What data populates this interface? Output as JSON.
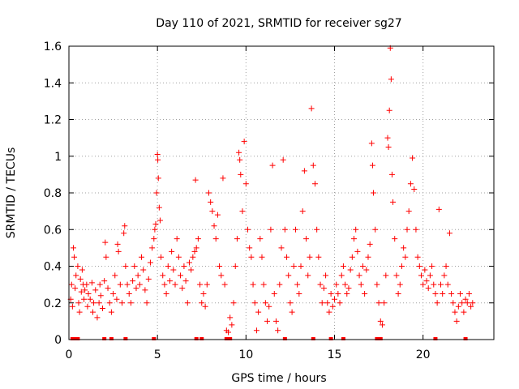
{
  "chart_data": {
    "type": "scatter",
    "title": "Day 110 of 2021, SRMTID for receiver sg27",
    "xlabel": "GPS time / hours",
    "ylabel": "SRMTID / TECUs",
    "xlim": [
      0,
      24
    ],
    "ylim": [
      0,
      1.6
    ],
    "xticks": [
      0,
      5,
      10,
      15,
      20
    ],
    "yticks": [
      0,
      0.2,
      0.4,
      0.6,
      0.8,
      1,
      1.2,
      1.4,
      1.6
    ],
    "ytick_labels": [
      "0",
      "0.2",
      "0.4",
      "0.6",
      "0.8",
      "1",
      "1.2",
      "1.4",
      "1.6"
    ],
    "grid": true,
    "legend": "none",
    "marker": "plus",
    "color": "#ff0000",
    "series": [
      {
        "name": "SRMTID",
        "points": [
          [
            0.1,
            0.22
          ],
          [
            0.15,
            0.3
          ],
          [
            0.2,
            0.18
          ],
          [
            0.25,
            0.5
          ],
          [
            0.3,
            0.45
          ],
          [
            0.35,
            0.28
          ],
          [
            0.4,
            0.35
          ],
          [
            0.5,
            0.4
          ],
          [
            0.55,
            0.2
          ],
          [
            0.6,
            0.15
          ],
          [
            0.65,
            0.33
          ],
          [
            0.7,
            0.26
          ],
          [
            0.75,
            0.38
          ],
          [
            0.8,
            0.3
          ],
          [
            0.85,
            0.22
          ],
          [
            0.9,
            0.27
          ],
          [
            1.0,
            0.3
          ],
          [
            1.05,
            0.18
          ],
          [
            1.1,
            0.25
          ],
          [
            1.2,
            0.22
          ],
          [
            1.3,
            0.31
          ],
          [
            1.35,
            0.15
          ],
          [
            1.4,
            0.2
          ],
          [
            1.5,
            0.27
          ],
          [
            1.6,
            0.12
          ],
          [
            1.7,
            0.2
          ],
          [
            1.75,
            0.3
          ],
          [
            1.8,
            0.24
          ],
          [
            1.9,
            0.17
          ],
          [
            2.0,
            0.32
          ],
          [
            2.05,
            0.53
          ],
          [
            2.1,
            0.45
          ],
          [
            2.2,
            0.28
          ],
          [
            2.3,
            0.2
          ],
          [
            2.4,
            0.15
          ],
          [
            2.5,
            0.25
          ],
          [
            2.6,
            0.35
          ],
          [
            2.7,
            0.22
          ],
          [
            2.75,
            0.52
          ],
          [
            2.8,
            0.48
          ],
          [
            2.9,
            0.3
          ],
          [
            3.0,
            0.2
          ],
          [
            3.1,
            0.58
          ],
          [
            3.15,
            0.62
          ],
          [
            3.2,
            0.4
          ],
          [
            3.3,
            0.3
          ],
          [
            3.4,
            0.25
          ],
          [
            3.5,
            0.2
          ],
          [
            3.6,
            0.32
          ],
          [
            3.7,
            0.4
          ],
          [
            3.8,
            0.28
          ],
          [
            3.9,
            0.35
          ],
          [
            4.0,
            0.3
          ],
          [
            4.1,
            0.45
          ],
          [
            4.2,
            0.38
          ],
          [
            4.3,
            0.27
          ],
          [
            4.4,
            0.2
          ],
          [
            4.5,
            0.33
          ],
          [
            4.6,
            0.42
          ],
          [
            4.7,
            0.5
          ],
          [
            4.8,
            0.55
          ],
          [
            4.85,
            0.6
          ],
          [
            4.9,
            0.63
          ],
          [
            4.95,
            0.8
          ],
          [
            5.0,
            1.01
          ],
          [
            5.02,
            0.98
          ],
          [
            5.05,
            0.88
          ],
          [
            5.1,
            0.72
          ],
          [
            5.15,
            0.65
          ],
          [
            5.2,
            0.45
          ],
          [
            5.3,
            0.35
          ],
          [
            5.4,
            0.3
          ],
          [
            5.5,
            0.25
          ],
          [
            5.6,
            0.4
          ],
          [
            5.7,
            0.32
          ],
          [
            5.8,
            0.48
          ],
          [
            5.9,
            0.38
          ],
          [
            6.0,
            0.3
          ],
          [
            6.1,
            0.55
          ],
          [
            6.2,
            0.45
          ],
          [
            6.3,
            0.35
          ],
          [
            6.4,
            0.28
          ],
          [
            6.5,
            0.4
          ],
          [
            6.6,
            0.32
          ],
          [
            6.7,
            0.2
          ],
          [
            6.8,
            0.42
          ],
          [
            6.9,
            0.38
          ],
          [
            7.0,
            0.45
          ],
          [
            7.1,
            0.48
          ],
          [
            7.15,
            0.87
          ],
          [
            7.2,
            0.5
          ],
          [
            7.3,
            0.55
          ],
          [
            7.4,
            0.3
          ],
          [
            7.5,
            0.2
          ],
          [
            7.6,
            0.25
          ],
          [
            7.7,
            0.18
          ],
          [
            7.8,
            0.3
          ],
          [
            7.9,
            0.8
          ],
          [
            8.0,
            0.75
          ],
          [
            8.1,
            0.7
          ],
          [
            8.2,
            0.62
          ],
          [
            8.3,
            0.55
          ],
          [
            8.4,
            0.68
          ],
          [
            8.5,
            0.4
          ],
          [
            8.6,
            0.35
          ],
          [
            8.7,
            0.88
          ],
          [
            8.8,
            0.3
          ],
          [
            8.9,
            0.05
          ],
          [
            9.0,
            0.04
          ],
          [
            9.1,
            0.12
          ],
          [
            9.2,
            0.08
          ],
          [
            9.3,
            0.2
          ],
          [
            9.4,
            0.4
          ],
          [
            9.5,
            0.55
          ],
          [
            9.6,
            1.02
          ],
          [
            9.65,
            0.98
          ],
          [
            9.7,
            0.9
          ],
          [
            9.8,
            0.7
          ],
          [
            9.9,
            1.08
          ],
          [
            10.0,
            0.85
          ],
          [
            10.1,
            0.6
          ],
          [
            10.2,
            0.5
          ],
          [
            10.3,
            0.45
          ],
          [
            10.4,
            0.3
          ],
          [
            10.5,
            0.2
          ],
          [
            10.6,
            0.05
          ],
          [
            10.7,
            0.15
          ],
          [
            10.8,
            0.55
          ],
          [
            10.9,
            0.45
          ],
          [
            11.0,
            0.3
          ],
          [
            11.1,
            0.2
          ],
          [
            11.2,
            0.1
          ],
          [
            11.3,
            0.18
          ],
          [
            11.4,
            0.6
          ],
          [
            11.5,
            0.95
          ],
          [
            11.6,
            0.25
          ],
          [
            11.7,
            0.1
          ],
          [
            11.8,
            0.05
          ],
          [
            11.9,
            0.3
          ],
          [
            12.0,
            0.5
          ],
          [
            12.1,
            0.98
          ],
          [
            12.2,
            0.6
          ],
          [
            12.3,
            0.45
          ],
          [
            12.4,
            0.35
          ],
          [
            12.5,
            0.2
          ],
          [
            12.6,
            0.15
          ],
          [
            12.7,
            0.4
          ],
          [
            12.8,
            0.6
          ],
          [
            12.9,
            0.3
          ],
          [
            13.0,
            0.25
          ],
          [
            13.1,
            0.4
          ],
          [
            13.2,
            0.7
          ],
          [
            13.3,
            0.92
          ],
          [
            13.4,
            0.55
          ],
          [
            13.5,
            0.35
          ],
          [
            13.6,
            0.45
          ],
          [
            13.7,
            1.26
          ],
          [
            13.8,
            0.95
          ],
          [
            13.9,
            0.85
          ],
          [
            14.0,
            0.6
          ],
          [
            14.1,
            0.45
          ],
          [
            14.2,
            0.3
          ],
          [
            14.3,
            0.2
          ],
          [
            14.4,
            0.28
          ],
          [
            14.5,
            0.35
          ],
          [
            14.6,
            0.2
          ],
          [
            14.7,
            0.15
          ],
          [
            14.8,
            0.25
          ],
          [
            14.9,
            0.18
          ],
          [
            15.0,
            0.22
          ],
          [
            15.1,
            0.3
          ],
          [
            15.2,
            0.25
          ],
          [
            15.3,
            0.2
          ],
          [
            15.4,
            0.35
          ],
          [
            15.5,
            0.4
          ],
          [
            15.6,
            0.3
          ],
          [
            15.7,
            0.25
          ],
          [
            15.8,
            0.28
          ],
          [
            15.9,
            0.38
          ],
          [
            16.0,
            0.45
          ],
          [
            16.1,
            0.55
          ],
          [
            16.2,
            0.6
          ],
          [
            16.3,
            0.48
          ],
          [
            16.4,
            0.35
          ],
          [
            16.5,
            0.3
          ],
          [
            16.6,
            0.4
          ],
          [
            16.7,
            0.25
          ],
          [
            16.8,
            0.38
          ],
          [
            16.9,
            0.45
          ],
          [
            17.0,
            0.52
          ],
          [
            17.1,
            1.07
          ],
          [
            17.15,
            0.95
          ],
          [
            17.2,
            0.8
          ],
          [
            17.3,
            0.6
          ],
          [
            17.4,
            0.3
          ],
          [
            17.5,
            0.2
          ],
          [
            17.6,
            0.1
          ],
          [
            17.7,
            0.08
          ],
          [
            17.8,
            0.2
          ],
          [
            17.9,
            0.35
          ],
          [
            18.0,
            1.1
          ],
          [
            18.05,
            1.05
          ],
          [
            18.1,
            1.25
          ],
          [
            18.15,
            1.59
          ],
          [
            18.2,
            1.42
          ],
          [
            18.25,
            0.9
          ],
          [
            18.3,
            0.75
          ],
          [
            18.4,
            0.55
          ],
          [
            18.5,
            0.35
          ],
          [
            18.6,
            0.25
          ],
          [
            18.7,
            0.3
          ],
          [
            18.8,
            0.4
          ],
          [
            18.9,
            0.5
          ],
          [
            19.0,
            0.45
          ],
          [
            19.1,
            0.6
          ],
          [
            19.2,
            0.7
          ],
          [
            19.3,
            0.85
          ],
          [
            19.4,
            0.99
          ],
          [
            19.5,
            0.82
          ],
          [
            19.6,
            0.6
          ],
          [
            19.7,
            0.45
          ],
          [
            19.8,
            0.4
          ],
          [
            19.9,
            0.35
          ],
          [
            20.0,
            0.3
          ],
          [
            20.1,
            0.38
          ],
          [
            20.2,
            0.32
          ],
          [
            20.3,
            0.28
          ],
          [
            20.4,
            0.35
          ],
          [
            20.5,
            0.4
          ],
          [
            20.6,
            0.3
          ],
          [
            20.7,
            0.25
          ],
          [
            20.8,
            0.2
          ],
          [
            20.9,
            0.71
          ],
          [
            21.0,
            0.3
          ],
          [
            21.1,
            0.25
          ],
          [
            21.2,
            0.35
          ],
          [
            21.3,
            0.4
          ],
          [
            21.4,
            0.3
          ],
          [
            21.5,
            0.58
          ],
          [
            21.6,
            0.25
          ],
          [
            21.7,
            0.2
          ],
          [
            21.8,
            0.15
          ],
          [
            21.9,
            0.1
          ],
          [
            22.0,
            0.18
          ],
          [
            22.1,
            0.25
          ],
          [
            22.2,
            0.2
          ],
          [
            22.3,
            0.15
          ],
          [
            22.4,
            0.22
          ],
          [
            22.5,
            0.2
          ],
          [
            22.6,
            0.25
          ],
          [
            22.7,
            0.18
          ],
          [
            22.8,
            0.2
          ]
        ]
      }
    ],
    "zero_values_x": [
      0.2,
      0.35,
      0.5,
      2.0,
      2.4,
      3.2,
      4.8,
      7.2,
      7.5,
      8.9,
      9.1,
      12.2,
      13.8,
      14.8,
      15.5,
      17.4,
      17.6,
      20.7,
      22.4
    ]
  }
}
